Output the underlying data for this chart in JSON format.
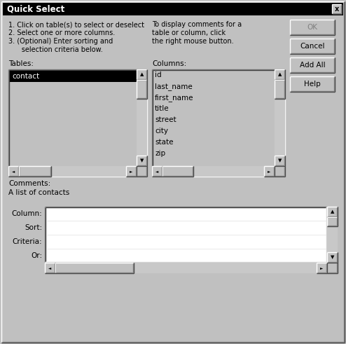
{
  "title": "Quick Select",
  "bg_color": "#c0c0c0",
  "title_bar_color": "#000000",
  "title_text_color": "#ffffff",
  "instructions": [
    "1. Click on table(s) to select or deselect",
    "2. Select one or more columns.",
    "3. (Optional) Enter sorting and",
    "      selection criteria below."
  ],
  "hint_text": [
    "To display comments for a",
    "table or column, click",
    "the right mouse button."
  ],
  "tables_label": "Tables:",
  "tables_selected": "contact",
  "columns_label": "Columns:",
  "columns_items": [
    "id",
    "last_name",
    "first_name",
    "title",
    "street",
    "city",
    "state",
    "zip"
  ],
  "comments_label": "Comments:",
  "comments_text": "A list of contacts",
  "buttons": [
    "OK",
    "Cancel",
    "Add All",
    "Help"
  ],
  "row_labels": [
    "Column:",
    "Sort:",
    "Criteria:",
    "Or:"
  ],
  "white": "#ffffff",
  "black": "#000000",
  "mid_gray": "#a0a0a0",
  "dark_gray": "#808080",
  "light_gray": "#c0c0c0",
  "lighter_gray": "#d4d0c8",
  "highlight_black": "#000000",
  "highlight_text": "#ffffff",
  "scrollbar_gray": "#d0d0d0"
}
